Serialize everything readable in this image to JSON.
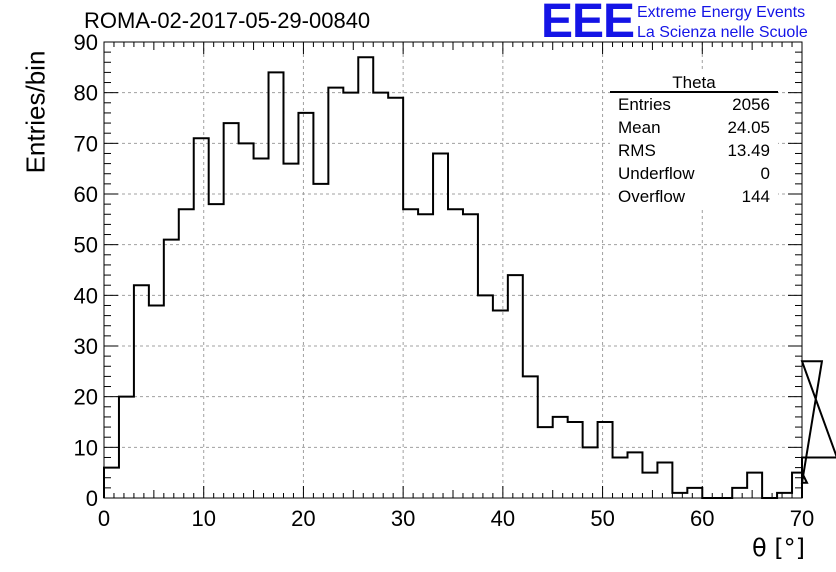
{
  "header": {
    "title": "ROMA-02-2017-05-29-00840",
    "logo_mark": "EEE",
    "logo_line1": "Extreme Energy Events",
    "logo_line2": "La Scienza nelle Scuole"
  },
  "colors": {
    "logo": "#1414e6",
    "grid": "#a0a0a0",
    "line": "#000000"
  },
  "chart_data": {
    "type": "bar",
    "style": "step-histogram",
    "title": "ROMA-02-2017-05-29-00840",
    "xlabel": "θ [°]",
    "ylabel": "Entries/bin",
    "xlim": [
      0,
      70
    ],
    "ylim": [
      0,
      90
    ],
    "grid": true,
    "x_ticks": [
      "0",
      "10",
      "20",
      "30",
      "40",
      "50",
      "60",
      "70"
    ],
    "y_ticks": [
      "0",
      "10",
      "20",
      "30",
      "40",
      "50",
      "60",
      "70",
      "80",
      "90"
    ],
    "bin_width": 1.5,
    "x_start": 0,
    "values": [
      6,
      20,
      42,
      38,
      51,
      57,
      71,
      58,
      74,
      70,
      67,
      84,
      66,
      76,
      62,
      81,
      80,
      87,
      80,
      79,
      57,
      56,
      68,
      57,
      56,
      40,
      37,
      44,
      24,
      14,
      16,
      15,
      10,
      15,
      8,
      9,
      5,
      7,
      1,
      2,
      0,
      0,
      2,
      5,
      0,
      1,
      5,
      3,
      27,
      8
    ],
    "stats_box": {
      "name": "Theta",
      "rows": [
        {
          "label": "Entries",
          "value": "2056"
        },
        {
          "label": "Mean",
          "value": "24.05"
        },
        {
          "label": "RMS",
          "value": "13.49"
        },
        {
          "label": "Underflow",
          "value": "0"
        },
        {
          "label": "Overflow",
          "value": "144"
        }
      ]
    }
  }
}
